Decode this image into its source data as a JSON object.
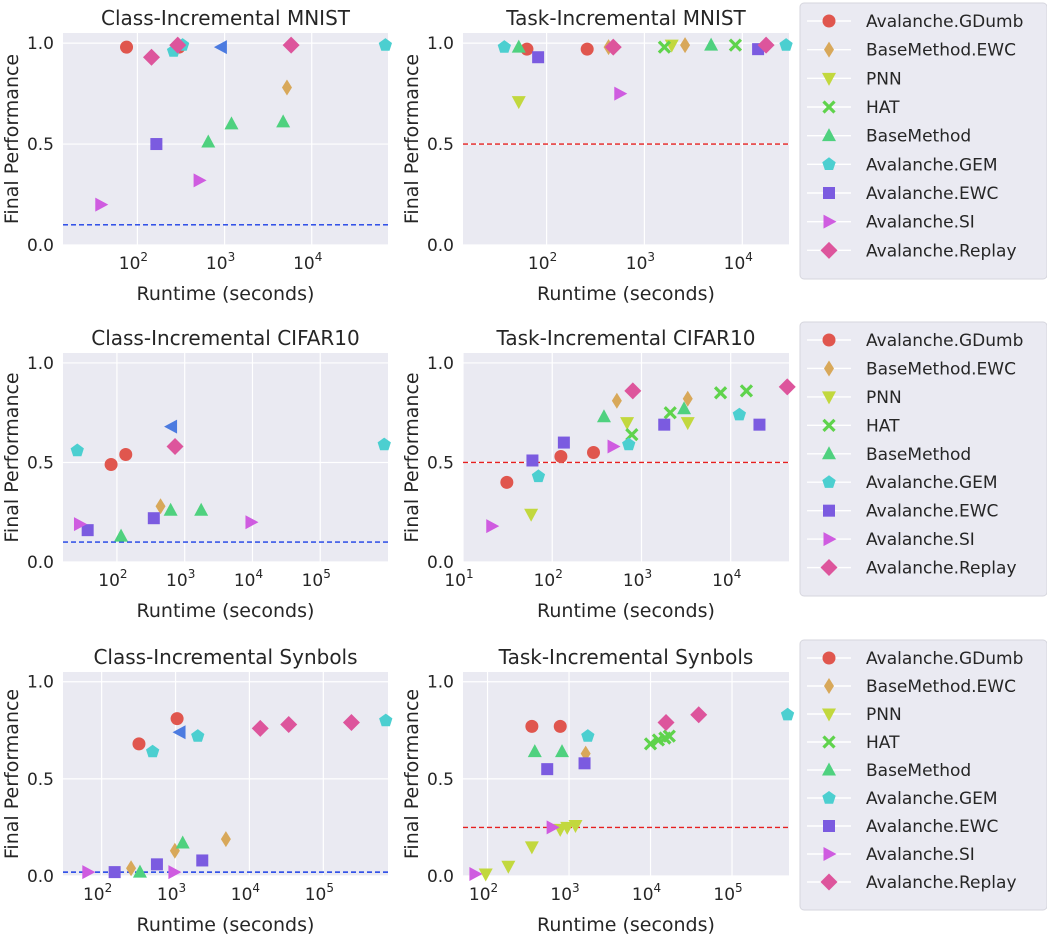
{
  "figure": {
    "ylabel": "Final Performance",
    "xlabel": "Runtime (seconds)"
  },
  "colors": {
    "Avalanche.GDumb": "#e0564e",
    "BaseMethod.EWC": "#d8a85a",
    "PNN": "#c2d83e",
    "HAT": "#5fd34c",
    "BaseMethod": "#4fd17f",
    "Avalanche.GEM": "#4ccfd0",
    "Avalanche.EWC": "#7b5be0",
    "Avalanche.SI": "#cf5ce0",
    "Avalanche.Replay": "#dd559c",
    "extra_left_triangle": "#4c7be0",
    "background": "#eaeaf2"
  },
  "legend": {
    "items": [
      {
        "name": "Avalanche.GDumb",
        "marker": "circle"
      },
      {
        "name": "BaseMethod.EWC",
        "marker": "thin-diamond"
      },
      {
        "name": "PNN",
        "marker": "triangle-down"
      },
      {
        "name": "HAT",
        "marker": "x"
      },
      {
        "name": "BaseMethod",
        "marker": "triangle-up"
      },
      {
        "name": "Avalanche.GEM",
        "marker": "pentagon"
      },
      {
        "name": "Avalanche.EWC",
        "marker": "square"
      },
      {
        "name": "Avalanche.SI",
        "marker": "triangle-right"
      },
      {
        "name": "Avalanche.Replay",
        "marker": "diamond"
      }
    ]
  },
  "chart_data": [
    {
      "type": "scatter",
      "title": "Class-Incremental MNIST",
      "xlabel": "Runtime (seconds)",
      "ylabel": "Final Performance",
      "xscale": "log",
      "xlim": [
        14,
        75000
      ],
      "ylim": [
        0,
        1.05
      ],
      "xticks": [
        100,
        1000,
        10000
      ],
      "xtick_labels": [
        "10^2",
        "10^3",
        "10^4"
      ],
      "yticks": [
        0,
        0.5,
        1
      ],
      "ytick_labels": [
        "0.0",
        "0.5",
        "1.0"
      ],
      "baseline": {
        "y": 0.1,
        "color": "#1a3ee6"
      },
      "series": [
        {
          "name": "Avalanche.GDumb",
          "points": [
            [
              75,
              0.98
            ],
            [
              300,
              0.98
            ]
          ]
        },
        {
          "name": "BaseMethod.EWC",
          "points": [
            [
              5200,
              0.78
            ]
          ]
        },
        {
          "name": "BaseMethod",
          "points": [
            [
              650,
              0.51
            ],
            [
              1200,
              0.6
            ],
            [
              4700,
              0.61
            ]
          ]
        },
        {
          "name": "Avalanche.GEM",
          "points": [
            [
              260,
              0.96
            ],
            [
              330,
              0.99
            ],
            [
              70000,
              0.99
            ]
          ]
        },
        {
          "name": "Avalanche.EWC",
          "points": [
            [
              165,
              0.5
            ]
          ]
        },
        {
          "name": "Avalanche.SI",
          "points": [
            [
              38,
              0.2
            ],
            [
              510,
              0.32
            ]
          ]
        },
        {
          "name": "Avalanche.Replay",
          "points": [
            [
              145,
              0.93
            ],
            [
              290,
              0.99
            ],
            [
              5800,
              0.99
            ]
          ]
        },
        {
          "name": "extra_left_triangle",
          "marker": "triangle-left",
          "points": [
            [
              920,
              0.98
            ]
          ]
        }
      ]
    },
    {
      "type": "scatter",
      "title": "Task-Incremental MNIST",
      "xlabel": "Runtime (seconds)",
      "ylabel": "Final Performance",
      "xscale": "log",
      "xlim": [
        14,
        30000
      ],
      "ylim": [
        0,
        1.05
      ],
      "xticks": [
        100,
        1000,
        10000
      ],
      "xtick_labels": [
        "10^2",
        "10^3",
        "10^4"
      ],
      "yticks": [
        0,
        0.5,
        1
      ],
      "ytick_labels": [
        "0.0",
        "0.5",
        "1.0"
      ],
      "baseline": {
        "y": 0.5,
        "color": "#e62020"
      },
      "series": [
        {
          "name": "Avalanche.GDumb",
          "points": [
            [
              63,
              0.97
            ],
            [
              260,
              0.97
            ]
          ]
        },
        {
          "name": "BaseMethod.EWC",
          "points": [
            [
              430,
              0.98
            ],
            [
              2600,
              0.99
            ]
          ]
        },
        {
          "name": "PNN",
          "points": [
            [
              52,
              0.71
            ],
            [
              1900,
              0.99
            ]
          ]
        },
        {
          "name": "HAT",
          "points": [
            [
              1600,
              0.98
            ],
            [
              8500,
              0.99
            ]
          ]
        },
        {
          "name": "BaseMethod",
          "points": [
            [
              52,
              0.98
            ],
            [
              4800,
              0.99
            ]
          ]
        },
        {
          "name": "Avalanche.GEM",
          "points": [
            [
              37,
              0.98
            ],
            [
              28000,
              0.99
            ]
          ]
        },
        {
          "name": "Avalanche.EWC",
          "points": [
            [
              82,
              0.93
            ],
            [
              14500,
              0.97
            ]
          ]
        },
        {
          "name": "Avalanche.SI",
          "points": [
            [
              560,
              0.75
            ]
          ]
        },
        {
          "name": "Avalanche.Replay",
          "points": [
            [
              480,
              0.98
            ],
            [
              17500,
              0.99
            ]
          ]
        }
      ]
    },
    {
      "type": "scatter",
      "title": "Class-Incremental CIFAR10",
      "xlabel": "Runtime (seconds)",
      "ylabel": "Final Performance",
      "xscale": "log",
      "xlim": [
        16,
        1000000
      ],
      "ylim": [
        0,
        1.05
      ],
      "xticks": [
        100,
        1000,
        10000,
        100000
      ],
      "xtick_labels": [
        "10^2",
        "10^3",
        "10^4",
        "10^5"
      ],
      "yticks": [
        0,
        0.5,
        1
      ],
      "ytick_labels": [
        "0.0",
        "0.5",
        "1.0"
      ],
      "baseline": {
        "y": 0.1,
        "color": "#1a3ee6"
      },
      "series": [
        {
          "name": "Avalanche.GDumb",
          "points": [
            [
              82,
              0.49
            ],
            [
              135,
              0.54
            ]
          ]
        },
        {
          "name": "BaseMethod.EWC",
          "points": [
            [
              440,
              0.28
            ]
          ]
        },
        {
          "name": "BaseMethod",
          "points": [
            [
              115,
              0.13
            ],
            [
              620,
              0.26
            ],
            [
              1750,
              0.26
            ]
          ]
        },
        {
          "name": "Avalanche.GEM",
          "points": [
            [
              26,
              0.56
            ],
            [
              880000,
              0.59
            ]
          ]
        },
        {
          "name": "Avalanche.EWC",
          "points": [
            [
              37,
              0.16
            ],
            [
              350,
              0.22
            ]
          ]
        },
        {
          "name": "Avalanche.SI",
          "points": [
            [
              28,
              0.19
            ],
            [
              9500,
              0.2
            ]
          ]
        },
        {
          "name": "Avalanche.Replay",
          "points": [
            [
              720,
              0.58
            ]
          ]
        },
        {
          "name": "extra_left_triangle",
          "marker": "triangle-left",
          "points": [
            [
              640,
              0.68
            ]
          ]
        }
      ]
    },
    {
      "type": "scatter",
      "title": "Task-Incremental CIFAR10",
      "xlabel": "Runtime (seconds)",
      "ylabel": "Final Performance",
      "xscale": "log",
      "xlim": [
        10,
        45000
      ],
      "ylim": [
        0,
        1.05
      ],
      "xticks": [
        10,
        100,
        1000,
        10000
      ],
      "xtick_labels": [
        "10^1",
        "10^2",
        "10^3",
        "10^4"
      ],
      "yticks": [
        0,
        0.5,
        1
      ],
      "ytick_labels": [
        "0.0",
        "0.5",
        "1.0"
      ],
      "baseline": {
        "y": 0.5,
        "color": "#e62020"
      },
      "series": [
        {
          "name": "Avalanche.GDumb",
          "points": [
            [
              31,
              0.4
            ],
            [
              125,
              0.53
            ],
            [
              290,
              0.55
            ]
          ]
        },
        {
          "name": "BaseMethod.EWC",
          "points": [
            [
              530,
              0.81
            ],
            [
              3300,
              0.82
            ]
          ]
        },
        {
          "name": "PNN",
          "points": [
            [
              58,
              0.24
            ],
            [
              690,
              0.7
            ],
            [
              3300,
              0.7
            ]
          ]
        },
        {
          "name": "HAT",
          "points": [
            [
              780,
              0.64
            ],
            [
              2100,
              0.75
            ],
            [
              7700,
              0.85
            ],
            [
              15000,
              0.86
            ]
          ]
        },
        {
          "name": "BaseMethod",
          "points": [
            [
              380,
              0.73
            ],
            [
              3000,
              0.77
            ]
          ]
        },
        {
          "name": "Avalanche.GEM",
          "points": [
            [
              70,
              0.43
            ],
            [
              720,
              0.59
            ],
            [
              12500,
              0.74
            ]
          ]
        },
        {
          "name": "Avalanche.EWC",
          "points": [
            [
              60,
              0.51
            ],
            [
              135,
              0.6
            ],
            [
              1800,
              0.69
            ],
            [
              21000,
              0.69
            ]
          ]
        },
        {
          "name": "Avalanche.SI",
          "points": [
            [
              21,
              0.18
            ],
            [
              480,
              0.58
            ]
          ]
        },
        {
          "name": "Avalanche.Replay",
          "points": [
            [
              800,
              0.86
            ],
            [
              43000,
              0.88
            ]
          ]
        }
      ]
    },
    {
      "type": "scatter",
      "title": "Class-Incremental Synbols",
      "xlabel": "Runtime (seconds)",
      "ylabel": "Final Performance",
      "xscale": "log",
      "xlim": [
        30,
        750000
      ],
      "ylim": [
        0,
        1.05
      ],
      "xticks": [
        100,
        1000,
        10000,
        100000
      ],
      "xtick_labels": [
        "10^2",
        "10^3",
        "10^4",
        "10^5"
      ],
      "yticks": [
        0,
        0.5,
        1
      ],
      "ytick_labels": [
        "0.0",
        "0.5",
        "1.0"
      ],
      "baseline": {
        "y": 0.02,
        "color": "#1a3ee6"
      },
      "series": [
        {
          "name": "Avalanche.GDumb",
          "points": [
            [
              320,
              0.68
            ],
            [
              1050,
              0.81
            ]
          ]
        },
        {
          "name": "BaseMethod.EWC",
          "points": [
            [
              250,
              0.04
            ],
            [
              980,
              0.13
            ],
            [
              4800,
              0.19
            ]
          ]
        },
        {
          "name": "BaseMethod",
          "points": [
            [
              330,
              0.02
            ],
            [
              1250,
              0.17
            ]
          ]
        },
        {
          "name": "Avalanche.GEM",
          "points": [
            [
              490,
              0.64
            ],
            [
              2000,
              0.72
            ],
            [
              700000,
              0.8
            ]
          ]
        },
        {
          "name": "Avalanche.EWC",
          "points": [
            [
              150,
              0.02
            ],
            [
              560,
              0.06
            ],
            [
              2300,
              0.08
            ]
          ]
        },
        {
          "name": "Avalanche.SI",
          "points": [
            [
              65,
              0.02
            ],
            [
              950,
              0.02
            ]
          ]
        },
        {
          "name": "Avalanche.Replay",
          "points": [
            [
              14000,
              0.76
            ],
            [
              34000,
              0.78
            ],
            [
              240000,
              0.79
            ]
          ]
        },
        {
          "name": "extra_left_triangle",
          "marker": "triangle-left",
          "points": [
            [
              1150,
              0.74
            ]
          ]
        }
      ]
    },
    {
      "type": "scatter",
      "title": "Task-Incremental Synbols",
      "xlabel": "Runtime (seconds)",
      "ylabel": "Final Performance",
      "xscale": "log",
      "xlim": [
        50,
        500000
      ],
      "ylim": [
        0,
        1.05
      ],
      "xticks": [
        100,
        1000,
        10000,
        100000
      ],
      "xtick_labels": [
        "10^2",
        "10^3",
        "10^4",
        "10^5"
      ],
      "yticks": [
        0,
        0.5,
        1
      ],
      "ytick_labels": [
        "0.0",
        "0.5",
        "1.0"
      ],
      "baseline": {
        "y": 0.25,
        "color": "#e62020"
      },
      "series": [
        {
          "name": "Avalanche.GDumb",
          "points": [
            [
              350,
              0.77
            ],
            [
              780,
              0.77
            ]
          ]
        },
        {
          "name": "BaseMethod.EWC",
          "points": [
            [
              1600,
              0.63
            ]
          ]
        },
        {
          "name": "PNN",
          "points": [
            [
              95,
              0.01
            ],
            [
              180,
              0.05
            ],
            [
              350,
              0.15
            ],
            [
              780,
              0.24
            ],
            [
              950,
              0.25
            ],
            [
              1200,
              0.26
            ]
          ]
        },
        {
          "name": "HAT",
          "points": [
            [
              10000,
              0.68
            ],
            [
              12500,
              0.7
            ],
            [
              15000,
              0.71
            ],
            [
              17000,
              0.72
            ]
          ]
        },
        {
          "name": "BaseMethod",
          "points": [
            [
              380,
              0.64
            ],
            [
              820,
              0.64
            ]
          ]
        },
        {
          "name": "Avalanche.GEM",
          "points": [
            [
              1700,
              0.72
            ],
            [
              480000,
              0.83
            ]
          ]
        },
        {
          "name": "Avalanche.EWC",
          "points": [
            [
              540,
              0.55
            ],
            [
              1550,
              0.58
            ]
          ]
        },
        {
          "name": "Avalanche.SI",
          "points": [
            [
              70,
              0.01
            ],
            [
              620,
              0.25
            ]
          ]
        },
        {
          "name": "Avalanche.Replay",
          "points": [
            [
              15500,
              0.79
            ],
            [
              39000,
              0.83
            ]
          ]
        }
      ]
    }
  ]
}
